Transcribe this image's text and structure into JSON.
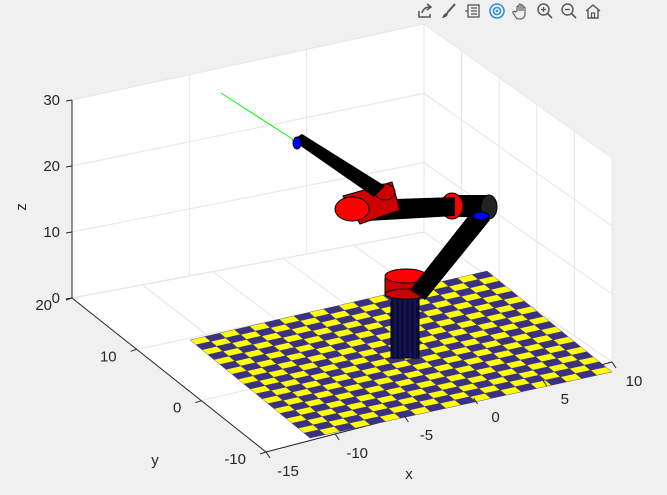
{
  "toolbar": {
    "buttons": [
      {
        "name": "export-icon"
      },
      {
        "name": "brush-icon"
      },
      {
        "name": "data-tips-icon"
      },
      {
        "name": "rotate-3d-icon"
      },
      {
        "name": "pan-hand-icon"
      },
      {
        "name": "zoom-in-icon"
      },
      {
        "name": "zoom-out-icon"
      },
      {
        "name": "home-icon"
      }
    ]
  },
  "axes": {
    "xlabel": "x",
    "ylabel": "y",
    "zlabel": "z",
    "xticks": [
      "-15",
      "-10",
      "-5",
      "0",
      "5",
      "10"
    ],
    "yticks": [
      "-10",
      "0",
      "10",
      "20"
    ],
    "zticks": [
      "0",
      "10",
      "20",
      "30"
    ],
    "colors": {
      "background": "#f0f0f0",
      "axes_bg": "#ffffff",
      "grid": "#e6e6e6",
      "checker_a": "#ffff00",
      "checker_b": "#3b3182",
      "link": "#000000",
      "joint": "#ff0000",
      "joint_cap": "#0000ff",
      "base": "#1a1a66",
      "tool_line": "#00ff00"
    }
  }
}
